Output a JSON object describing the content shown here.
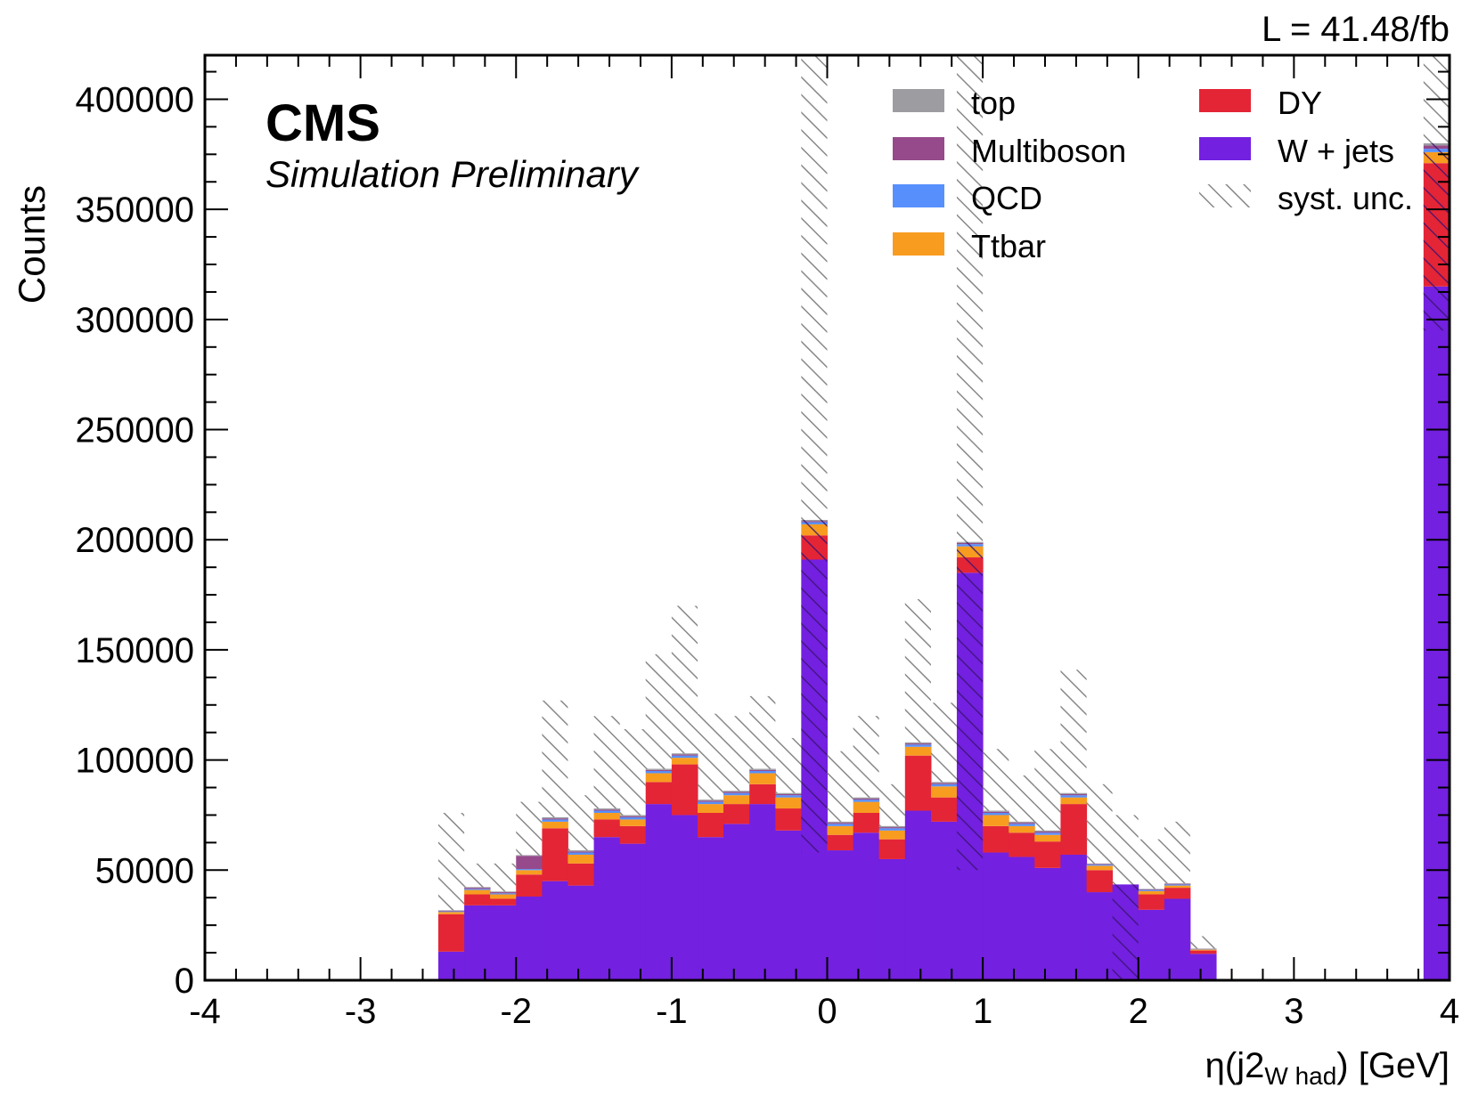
{
  "chart_data": {
    "type": "bar",
    "stacked": true,
    "header_label": "CMS",
    "sub_label": "Simulation Preliminary",
    "lumi_label": "L = 41.48/fb",
    "ylabel": "Counts",
    "xlabel_main": "η(j2",
    "xlabel_sub": "W had",
    "xlabel_unit": ") [GeV]",
    "xlim": [
      -4,
      4
    ],
    "ylim": [
      0,
      420000
    ],
    "x_ticks": [
      -4,
      -3,
      -2,
      -1,
      0,
      1,
      2,
      3,
      4
    ],
    "y_ticks": [
      0,
      50000,
      100000,
      150000,
      200000,
      250000,
      300000,
      350000,
      400000
    ],
    "legend_position": "top-right",
    "bin_edges": [
      -2.5,
      -2.333,
      -2.167,
      -2.0,
      -1.833,
      -1.667,
      -1.5,
      -1.333,
      -1.167,
      -1.0,
      -0.833,
      -0.667,
      -0.5,
      -0.333,
      -0.167,
      0.0,
      0.167,
      0.333,
      0.5,
      0.667,
      0.833,
      1.0,
      1.167,
      1.333,
      1.5,
      1.667,
      1.833,
      2.0,
      2.167,
      2.333,
      2.5
    ],
    "overflow_bin": [
      3.833,
      4.0
    ],
    "series": [
      {
        "name": "W + jets",
        "color": "#7320e0",
        "values": [
          13000,
          34000,
          34000,
          38000,
          45000,
          43000,
          65000,
          62000,
          80000,
          75000,
          65000,
          71000,
          80000,
          68000,
          191000,
          59000,
          67000,
          55000,
          77000,
          72000,
          185000,
          58000,
          56000,
          51000,
          57000,
          40000,
          43500,
          32000,
          37000,
          12000
        ],
        "overflow": 315000
      },
      {
        "name": "DY",
        "color": "#e42536",
        "values": [
          17000,
          5000,
          3000,
          10000,
          24000,
          10000,
          8000,
          8000,
          10000,
          23000,
          11000,
          9000,
          9000,
          10000,
          11000,
          7000,
          9000,
          9000,
          25000,
          11000,
          7000,
          12000,
          11000,
          12000,
          23000,
          10000,
          0,
          7000,
          5000,
          1500
        ],
        "overflow": 56000
      },
      {
        "name": "Ttbar",
        "color": "#f89c20",
        "values": [
          1000,
          2000,
          2000,
          2000,
          3000,
          4000,
          3000,
          3000,
          4000,
          3000,
          4000,
          4000,
          5000,
          5000,
          5000,
          4000,
          5000,
          4000,
          4000,
          5000,
          5000,
          5000,
          3000,
          3000,
          3000,
          2000,
          0,
          1500,
          1000,
          500
        ],
        "overflow": 5000
      },
      {
        "name": "QCD",
        "color": "#5790fc",
        "values": [
          300,
          500,
          500,
          500,
          1000,
          1000,
          1000,
          1000,
          1000,
          1000,
          1000,
          1000,
          1000,
          1000,
          1000,
          1000,
          1000,
          1000,
          1000,
          1000,
          1000,
          1000,
          1000,
          1000,
          1000,
          500,
          0,
          500,
          500,
          200
        ],
        "overflow": 1500
      },
      {
        "name": "Multiboson",
        "color": "#964a8b",
        "values": [
          300,
          500,
          500,
          6000,
          500,
          500,
          500,
          500,
          500,
          500,
          500,
          500,
          500,
          500,
          500,
          500,
          500,
          500,
          500,
          500,
          500,
          500,
          500,
          500,
          500,
          300,
          0,
          300,
          300,
          100
        ],
        "overflow": 1500
      },
      {
        "name": "top",
        "color": "#9c9ca1",
        "values": [
          200,
          300,
          300,
          300,
          500,
          500,
          500,
          500,
          500,
          500,
          500,
          500,
          500,
          500,
          500,
          500,
          500,
          500,
          500,
          500,
          500,
          500,
          500,
          500,
          500,
          200,
          0,
          200,
          200,
          100
        ],
        "overflow": 1000
      }
    ],
    "syst_unc": {
      "name": "syst. unc.",
      "color": "#999999",
      "low": [
        0,
        0,
        0,
        0,
        0,
        0,
        0,
        0,
        0,
        0,
        0,
        0,
        0,
        0,
        58000,
        0,
        0,
        0,
        0,
        0,
        50000,
        0,
        0,
        0,
        0,
        0,
        0,
        0,
        0,
        0
      ],
      "high": [
        76000,
        53000,
        53000,
        81000,
        127000,
        84000,
        120000,
        114000,
        148000,
        170000,
        121000,
        120000,
        129000,
        110000,
        420000,
        104000,
        120000,
        89000,
        173000,
        126000,
        420000,
        105000,
        93000,
        105000,
        141000,
        89000,
        75000,
        64000,
        72000,
        20000
      ],
      "overflow_low": 295000,
      "overflow_high": 420000
    }
  }
}
